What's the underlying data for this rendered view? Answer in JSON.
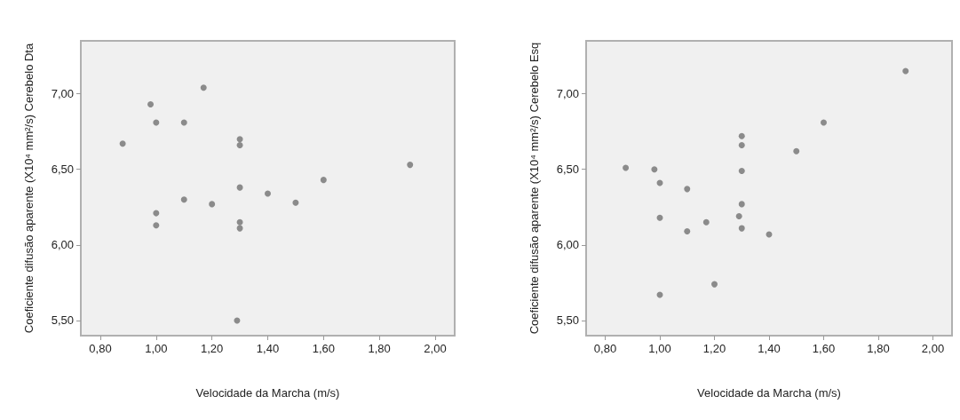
{
  "chart_data": [
    {
      "type": "scatter",
      "xlabel": "Velocidade da Marcha (m/s)",
      "ylabel": "Coeficiente difusão aparente (X10⁴ mm²/s) Cerebelo Dta",
      "marker": "circle",
      "grid": false,
      "xlim": [
        0.73,
        2.07
      ],
      "xticks": [
        {
          "value": 0.8,
          "label": "0,80"
        },
        {
          "value": 1.0,
          "label": "1,00"
        },
        {
          "value": 1.2,
          "label": "1,20"
        },
        {
          "value": 1.4,
          "label": "1,40"
        },
        {
          "value": 1.6,
          "label": "1,60"
        },
        {
          "value": 1.8,
          "label": "1,80"
        },
        {
          "value": 2.0,
          "label": "2,00"
        }
      ],
      "ylim": [
        5.4,
        7.35
      ],
      "yticks": [
        {
          "value": 5.5,
          "label": "5,50"
        },
        {
          "value": 6.0,
          "label": "6,00"
        },
        {
          "value": 6.5,
          "label": "6,50"
        },
        {
          "value": 7.0,
          "label": "7,00"
        }
      ],
      "series": [
        {
          "color": "#808080",
          "x": [
            0.88,
            0.98,
            1.0,
            1.1,
            1.17,
            1.3,
            1.3,
            1.91,
            1.6,
            1.3,
            1.4,
            1.1,
            1.2,
            1.5,
            1.0,
            1.0,
            1.3,
            1.3,
            1.29
          ],
          "values": [
            6.67,
            6.93,
            6.81,
            6.81,
            7.04,
            6.7,
            6.66,
            6.53,
            6.43,
            6.38,
            6.34,
            6.3,
            6.27,
            6.28,
            6.21,
            6.13,
            6.15,
            6.11,
            5.5
          ]
        }
      ]
    },
    {
      "type": "scatter",
      "xlabel": "Velocidade da Marcha (m/s)",
      "ylabel": "Coeficiente difusão aparente (X10⁴ mm²/s) Cerebelo Esq",
      "marker": "circle",
      "grid": false,
      "xlim": [
        0.73,
        2.07
      ],
      "xticks": [
        {
          "value": 0.8,
          "label": "0,80"
        },
        {
          "value": 1.0,
          "label": "1,00"
        },
        {
          "value": 1.2,
          "label": "1,20"
        },
        {
          "value": 1.4,
          "label": "1,40"
        },
        {
          "value": 1.6,
          "label": "1,60"
        },
        {
          "value": 1.8,
          "label": "1,80"
        },
        {
          "value": 2.0,
          "label": "2,00"
        }
      ],
      "ylim": [
        5.4,
        7.35
      ],
      "yticks": [
        {
          "value": 5.5,
          "label": "5,50"
        },
        {
          "value": 6.0,
          "label": "6,00"
        },
        {
          "value": 6.5,
          "label": "6,50"
        },
        {
          "value": 7.0,
          "label": "7,00"
        }
      ],
      "series": [
        {
          "color": "#808080",
          "x": [
            0.875,
            0.98,
            1.0,
            1.1,
            1.0,
            1.1,
            1.17,
            1.2,
            1.0,
            1.3,
            1.3,
            1.3,
            1.3,
            1.29,
            1.3,
            1.4,
            1.5,
            1.6,
            1.9
          ],
          "values": [
            6.51,
            6.5,
            6.41,
            6.37,
            6.18,
            6.09,
            6.15,
            5.74,
            5.67,
            6.72,
            6.66,
            6.49,
            6.27,
            6.19,
            6.11,
            6.07,
            6.62,
            6.81,
            7.15
          ]
        }
      ]
    }
  ]
}
